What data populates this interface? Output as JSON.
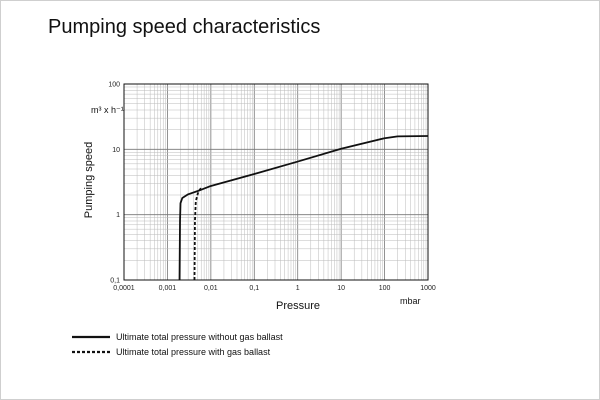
{
  "title": "Pumping speed characteristics",
  "chart_data": {
    "type": "line",
    "title": "Pumping speed characteristics",
    "xlabel": "Pressure",
    "ylabel": "Pumping speed",
    "x_unit": "mbar",
    "y_unit": "m³ x h⁻¹",
    "x_scale": "log",
    "y_scale": "log",
    "xlim": [
      0.0001,
      1000
    ],
    "ylim": [
      0.1,
      100
    ],
    "grid": true,
    "legend_position": "bottom-left",
    "x_ticks": [
      "0,0001",
      "0,001",
      "0,01",
      "0,1",
      "1",
      "10",
      "100",
      "1000"
    ],
    "y_ticks": [
      "0,1",
      "1",
      "10",
      "100"
    ],
    "series": [
      {
        "name": "Ultimate total pressure without gas ballast",
        "style": "solid",
        "points": [
          [
            0.0019,
            0.1
          ],
          [
            0.00195,
            0.8
          ],
          [
            0.002,
            1.5
          ],
          [
            0.0022,
            1.8
          ],
          [
            0.003,
            2.05
          ],
          [
            0.005,
            2.3
          ],
          [
            0.01,
            2.75
          ],
          [
            0.1,
            4.2
          ],
          [
            1,
            6.5
          ],
          [
            10,
            10.2
          ],
          [
            100,
            14.8
          ],
          [
            200,
            15.8
          ],
          [
            1000,
            16.0
          ]
        ]
      },
      {
        "name": "Ultimate total pressure with gas ballast",
        "style": "dashed",
        "points": [
          [
            0.0042,
            0.1
          ],
          [
            0.0043,
            0.8
          ],
          [
            0.0045,
            1.6
          ],
          [
            0.005,
            2.1
          ],
          [
            0.0055,
            2.4
          ],
          [
            0.006,
            2.55
          ]
        ]
      }
    ]
  }
}
